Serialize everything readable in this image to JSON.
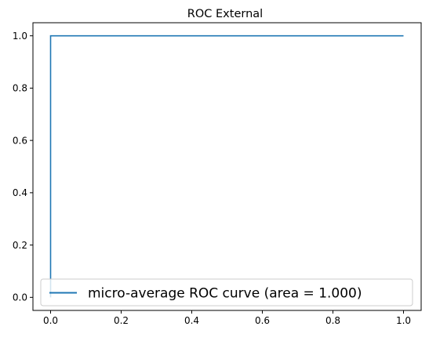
{
  "chart_data": {
    "type": "line",
    "title": "ROC External",
    "xlabel": "",
    "ylabel": "",
    "xlim": [
      -0.05,
      1.05
    ],
    "ylim": [
      -0.05,
      1.05
    ],
    "xticks": [
      0.0,
      0.2,
      0.4,
      0.6,
      0.8,
      1.0
    ],
    "xtick_labels": [
      "0.0",
      "0.2",
      "0.4",
      "0.6",
      "0.8",
      "1.0"
    ],
    "yticks": [
      0.0,
      0.2,
      0.4,
      0.6,
      0.8,
      1.0
    ],
    "ytick_labels": [
      "0.0",
      "0.2",
      "0.4",
      "0.6",
      "0.8",
      "1.0"
    ],
    "grid": false,
    "legend_position": "lower right",
    "series": [
      {
        "name": "micro-average ROC curve (area = 1.000)",
        "color": "#1f77b4",
        "x": [
          0.0,
          0.0,
          0.0,
          1.0
        ],
        "y": [
          0.0,
          0.0,
          1.0,
          1.0
        ]
      }
    ]
  }
}
